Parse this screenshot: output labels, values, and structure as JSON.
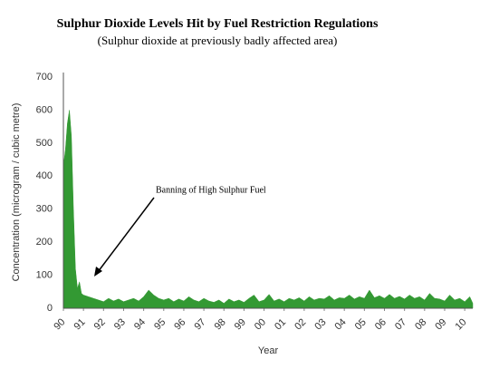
{
  "chart_data": {
    "type": "area",
    "title": "Sulphur Dioxide Levels Hit by Fuel Restriction Regulations",
    "subtitle": "(Sulphur dioxide at previously badly affected area)",
    "x_label": "Year",
    "y_label": "Concentration (microgram / cubic metre)",
    "annotation": "Banning of High Sulphur Fuel",
    "color": "#339933",
    "grid": false,
    "x": [
      1990,
      1990.1,
      1990.2,
      1990.3,
      1990.4,
      1990.5,
      1990.6,
      1990.7,
      1990.8,
      1990.9,
      1991,
      1991.25,
      1991.5,
      1991.75,
      1992,
      1992.25,
      1992.5,
      1992.75,
      1993,
      1993.25,
      1993.5,
      1993.75,
      1994,
      1994.25,
      1994.5,
      1994.75,
      1995,
      1995.25,
      1995.5,
      1995.75,
      1996,
      1996.25,
      1996.5,
      1996.75,
      1997,
      1997.25,
      1997.5,
      1997.75,
      1998,
      1998.25,
      1998.5,
      1998.75,
      1999,
      1999.25,
      1999.5,
      1999.75,
      2000,
      2000.25,
      2000.5,
      2000.75,
      2001,
      2001.25,
      2001.5,
      2001.75,
      2002,
      2002.25,
      2002.5,
      2002.75,
      2003,
      2003.25,
      2003.5,
      2003.75,
      2004,
      2004.25,
      2004.5,
      2004.75,
      2005,
      2005.25,
      2005.5,
      2005.75,
      2006,
      2006.25,
      2006.5,
      2006.75,
      2007,
      2007.25,
      2007.5,
      2007.75,
      2008,
      2008.25,
      2008.5,
      2008.75,
      2009,
      2009.25,
      2009.5,
      2009.75,
      2010,
      2010.25,
      2010.4
    ],
    "values": [
      430,
      480,
      560,
      600,
      520,
      300,
      120,
      60,
      80,
      45,
      40,
      35,
      30,
      25,
      20,
      30,
      22,
      28,
      20,
      25,
      30,
      22,
      35,
      55,
      40,
      30,
      25,
      30,
      20,
      28,
      22,
      35,
      25,
      20,
      30,
      22,
      18,
      25,
      15,
      28,
      20,
      25,
      18,
      30,
      40,
      20,
      25,
      42,
      22,
      28,
      20,
      30,
      25,
      32,
      22,
      35,
      25,
      30,
      28,
      38,
      25,
      32,
      30,
      40,
      28,
      35,
      30,
      55,
      32,
      38,
      30,
      42,
      30,
      36,
      28,
      40,
      30,
      35,
      25,
      45,
      30,
      28,
      22,
      40,
      25,
      30,
      20,
      35,
      15
    ],
    "xlim": [
      1990,
      2010.4
    ],
    "xticks": [
      {
        "value": 1990,
        "label": "90"
      },
      {
        "value": 1991,
        "label": "91"
      },
      {
        "value": 1992,
        "label": "92"
      },
      {
        "value": 1993,
        "label": "93"
      },
      {
        "value": 1994,
        "label": "94"
      },
      {
        "value": 1995,
        "label": "95"
      },
      {
        "value": 1996,
        "label": "96"
      },
      {
        "value": 1997,
        "label": "97"
      },
      {
        "value": 1998,
        "label": "98"
      },
      {
        "value": 1999,
        "label": "99"
      },
      {
        "value": 2000,
        "label": "00"
      },
      {
        "value": 2001,
        "label": "01"
      },
      {
        "value": 2002,
        "label": "02"
      },
      {
        "value": 2003,
        "label": "03"
      },
      {
        "value": 2004,
        "label": "04"
      },
      {
        "value": 2005,
        "label": "05"
      },
      {
        "value": 2006,
        "label": "06"
      },
      {
        "value": 2007,
        "label": "07"
      },
      {
        "value": 2008,
        "label": "08"
      },
      {
        "value": 2009,
        "label": "09"
      },
      {
        "value": 2010,
        "label": "10"
      }
    ],
    "ylim": [
      0,
      700
    ],
    "yticks": [
      0,
      100,
      200,
      300,
      400,
      500,
      600,
      700
    ]
  }
}
